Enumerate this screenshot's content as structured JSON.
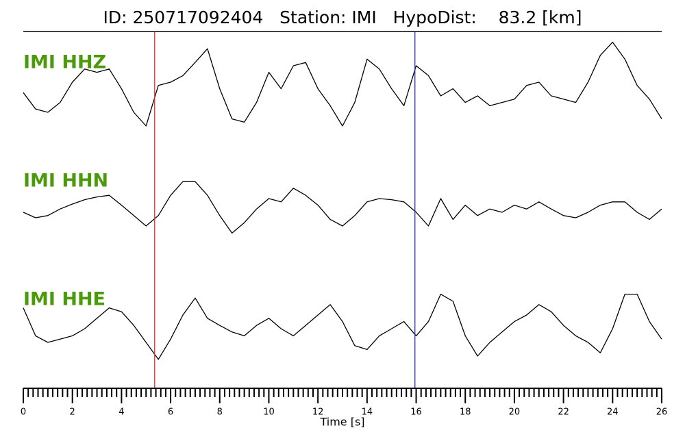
{
  "chart_data": {
    "type": "line",
    "title": "ID: 250717092404   Station: IMI   HypoDist:    83.2 [km]",
    "xlabel": "Time [s]",
    "xlim": [
      0,
      26
    ],
    "xticks": [
      0,
      2,
      4,
      6,
      8,
      10,
      12,
      14,
      16,
      18,
      20,
      22,
      24,
      26
    ],
    "minor_ticks_per_major": 10,
    "ylim": [
      -1,
      1
    ],
    "vlines": [
      {
        "x": 5.35,
        "color": "#e8272a"
      },
      {
        "x": 15.95,
        "color": "#2a2ad8"
      }
    ],
    "label_color": "#4a9a0a",
    "x": [
      0,
      0.5,
      1,
      1.5,
      2,
      2.5,
      3,
      3.5,
      4,
      4.5,
      5,
      5.5,
      6,
      6.5,
      7,
      7.5,
      8,
      8.5,
      9,
      9.5,
      10,
      10.5,
      11,
      11.5,
      12,
      12.5,
      13,
      13.5,
      14,
      14.5,
      15,
      15.5,
      16,
      16.5,
      17,
      17.5,
      18,
      18.5,
      19,
      19.5,
      20,
      20.5,
      21,
      21.5,
      22,
      22.5,
      23,
      23.5,
      24,
      24.5,
      25,
      25.5,
      26
    ],
    "series": [
      {
        "name": "IMI HHZ",
        "color": "#000000",
        "values": [
          -0.09,
          -0.39,
          -0.45,
          -0.27,
          0.1,
          0.34,
          0.28,
          0.34,
          -0.02,
          -0.45,
          -0.7,
          0.04,
          0.1,
          0.22,
          0.46,
          0.71,
          -0.02,
          -0.57,
          -0.63,
          -0.27,
          0.28,
          -0.02,
          0.4,
          0.46,
          -0.02,
          -0.33,
          -0.7,
          -0.27,
          0.52,
          0.34,
          -0.02,
          -0.33,
          0.4,
          0.22,
          -0.15,
          -0.02,
          -0.27,
          -0.15,
          -0.33,
          -0.27,
          -0.21,
          0.04,
          0.1,
          -0.15,
          -0.21,
          -0.27,
          0.1,
          0.59,
          0.83,
          0.52,
          0.04,
          -0.21,
          -0.57
        ]
      },
      {
        "name": "IMI HHN",
        "color": "#000000",
        "values": [
          0,
          -0.1,
          -0.06,
          0.06,
          0.15,
          0.23,
          0.28,
          0.31,
          0.13,
          -0.06,
          -0.25,
          -0.06,
          0.31,
          0.56,
          0.56,
          0.31,
          -0.06,
          -0.38,
          -0.19,
          0.06,
          0.25,
          0.19,
          0.44,
          0.31,
          0.13,
          -0.13,
          -0.25,
          -0.06,
          0.19,
          0.25,
          0.23,
          0.19,
          0,
          -0.25,
          0.25,
          -0.13,
          0.13,
          -0.06,
          0.06,
          0,
          0.13,
          0.06,
          0.19,
          0.06,
          -0.06,
          -0.1,
          0,
          0.13,
          0.19,
          0.19,
          0,
          -0.13,
          0.06
        ]
      },
      {
        "name": "IMI HHE",
        "color": "#000000",
        "values": [
          0.38,
          -0.13,
          -0.25,
          -0.19,
          -0.13,
          0,
          0.19,
          0.38,
          0.31,
          0.06,
          -0.25,
          -0.56,
          -0.19,
          0.25,
          0.56,
          0.19,
          0.06,
          -0.06,
          -0.13,
          0.06,
          0.19,
          0,
          -0.13,
          0.06,
          0.25,
          0.44,
          0.13,
          -0.31,
          -0.38,
          -0.13,
          0,
          0.13,
          -0.13,
          0.13,
          0.63,
          0.5,
          -0.13,
          -0.5,
          -0.25,
          -0.06,
          0.13,
          0.25,
          0.44,
          0.31,
          0.06,
          -0.13,
          -0.25,
          -0.44,
          0,
          0.63,
          0.63,
          0.13,
          -0.19
        ]
      }
    ]
  }
}
